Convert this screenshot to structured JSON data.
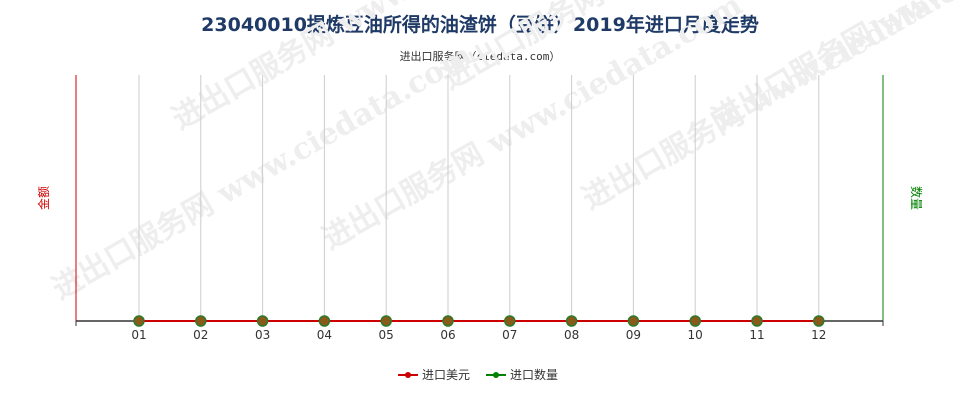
{
  "title": "23040010提炼豆油所得的油渣饼（豆饼）2019年进口月度走势",
  "subtitle": "进出口服务网（ciedata.com）",
  "watermark": "进出口服务网 www.ciedata.com",
  "colors": {
    "left_axis": "#cc0000",
    "right_axis": "#008000",
    "grid": "#cccccc",
    "series_amount": "#cc0000",
    "series_qty": "#008000",
    "title": "#1f3a66"
  },
  "chart_data": {
    "type": "line",
    "title": "23040010提炼豆油所得的油渣饼（豆饼）2019年进口月度走势",
    "categories": [
      "01",
      "02",
      "03",
      "04",
      "05",
      "06",
      "07",
      "08",
      "09",
      "10",
      "11",
      "12"
    ],
    "y_left_label": "金额",
    "y_right_label": "数量",
    "grid": true,
    "legend_position": "bottom",
    "series": [
      {
        "name": "进口美元",
        "axis": "left",
        "color": "#cc0000",
        "values": [
          0,
          0,
          0,
          0,
          0,
          0,
          0,
          0,
          0,
          0,
          0,
          0
        ]
      },
      {
        "name": "进口数量",
        "axis": "right",
        "color": "#008000",
        "values": [
          0,
          0,
          0,
          0,
          0,
          0,
          0,
          0,
          0,
          0,
          0,
          0
        ]
      }
    ]
  }
}
